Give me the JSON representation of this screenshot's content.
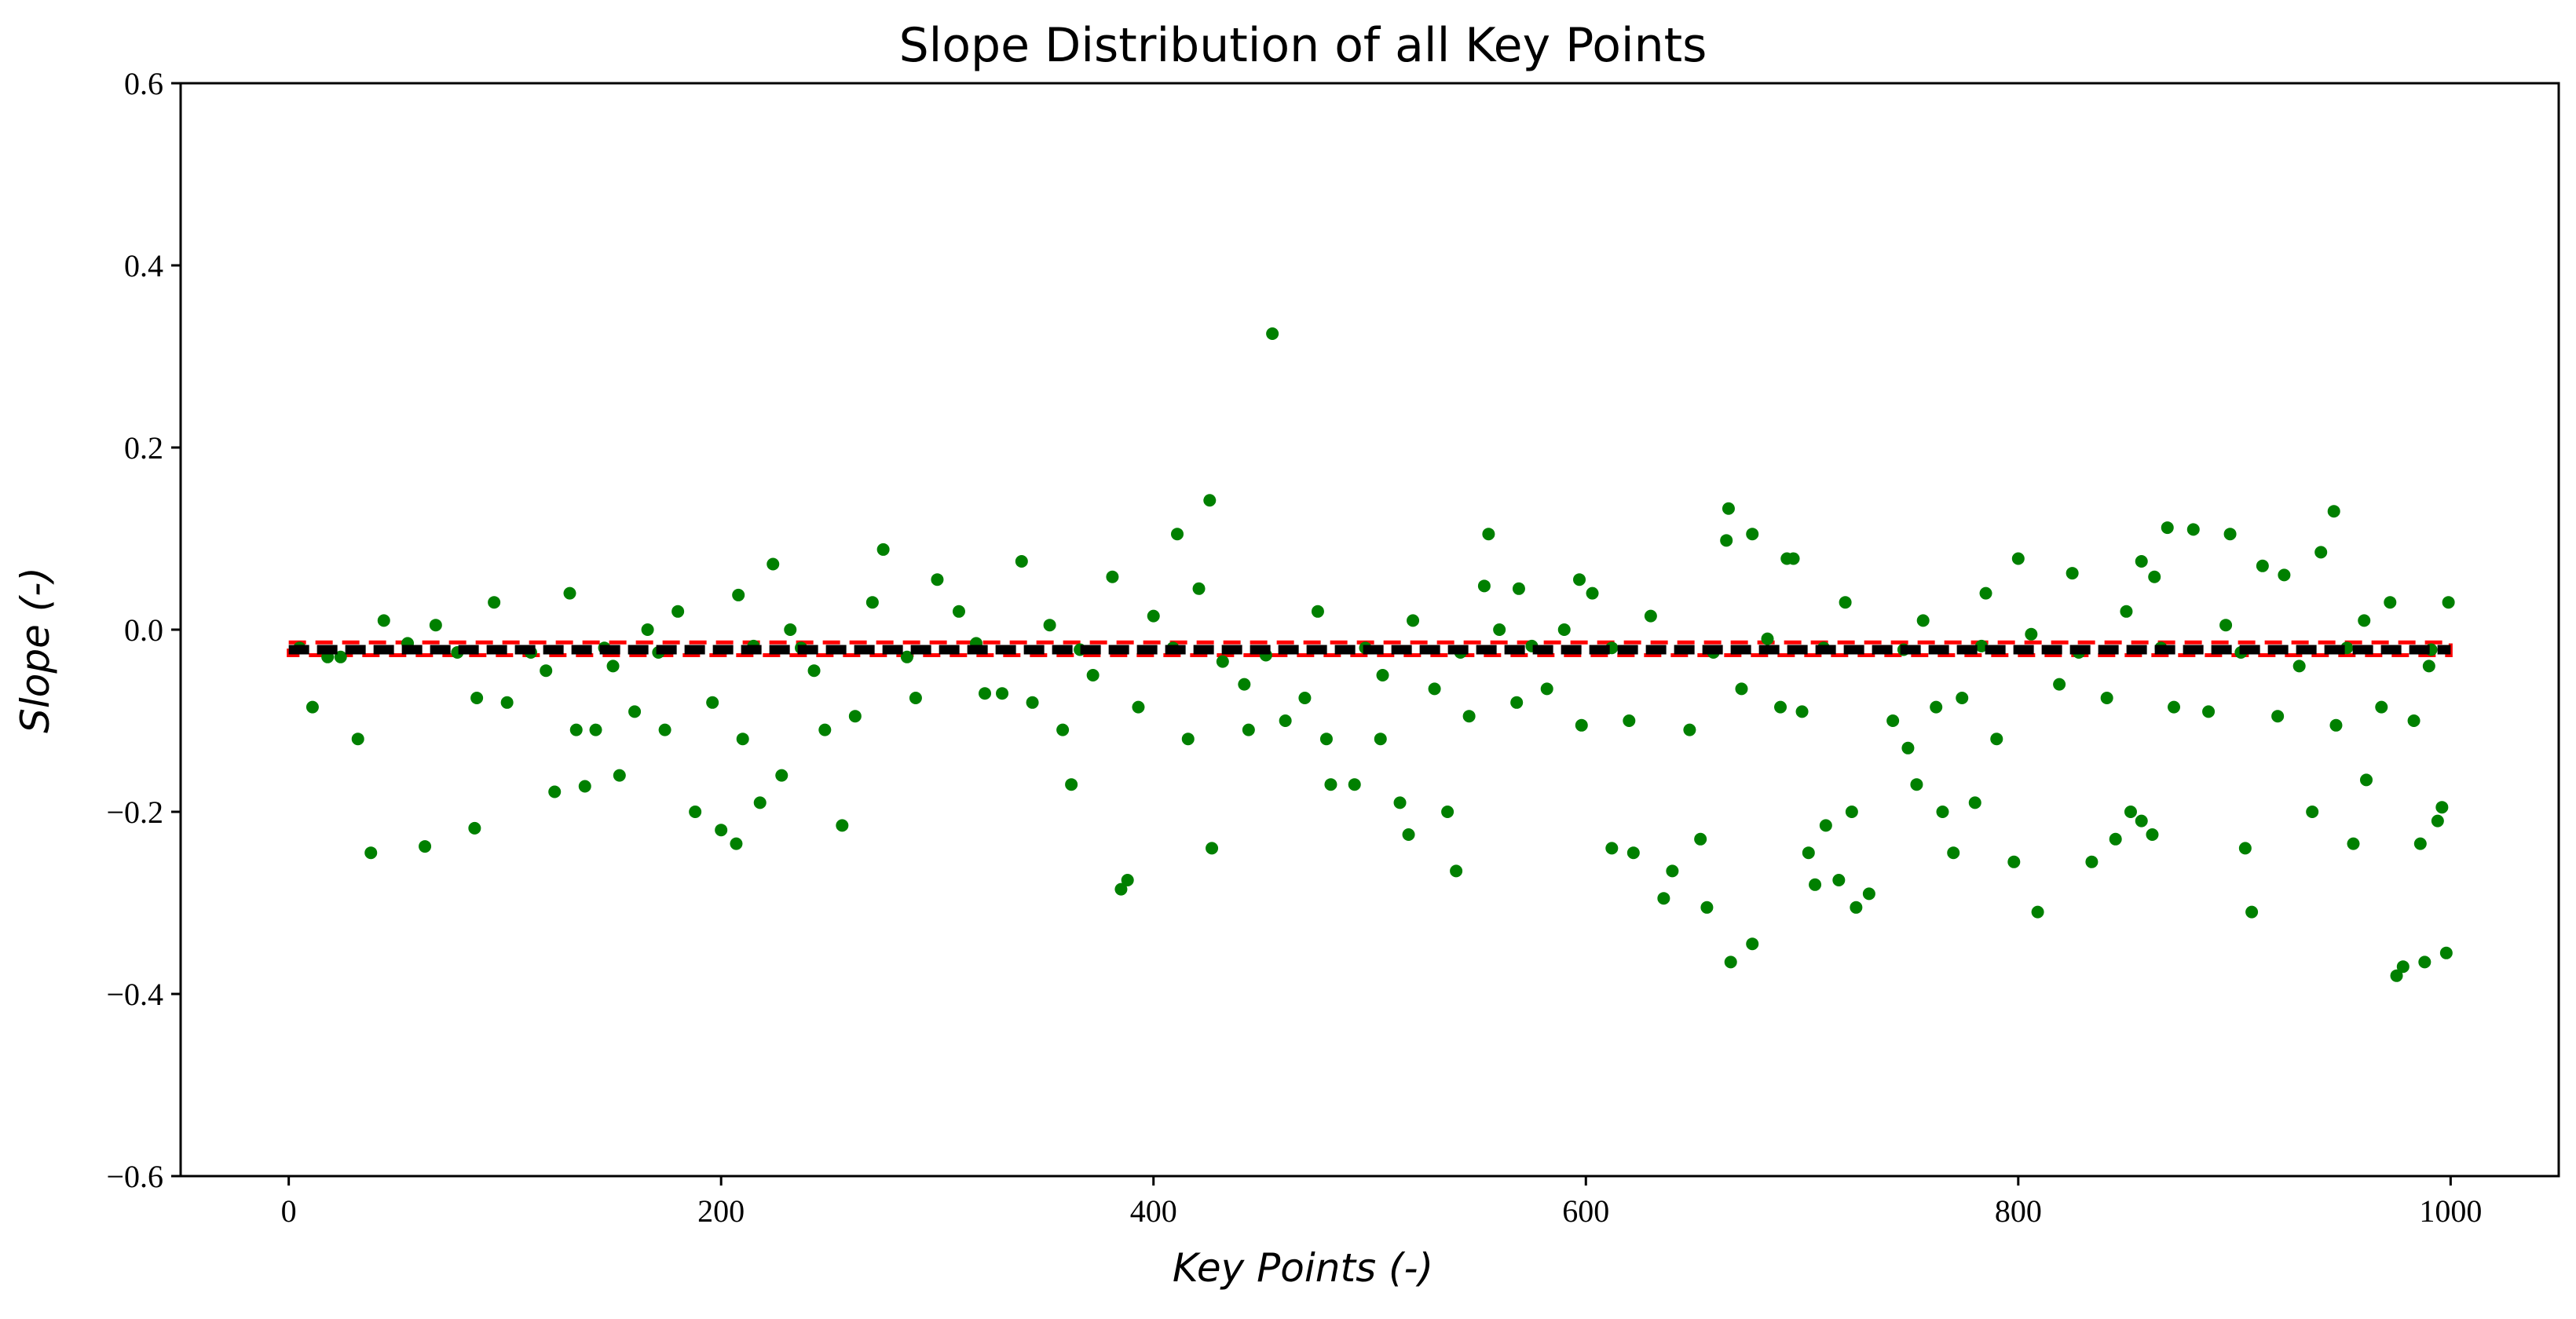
{
  "chart_data": {
    "type": "scatter",
    "title": "Slope Distribution of all Key Points",
    "xlabel": "Key Points (-)",
    "ylabel": "Slope (-)",
    "xlim": [
      -50,
      1050
    ],
    "ylim": [
      -0.6,
      0.6
    ],
    "xticks": [
      {
        "value": 0,
        "label": "0"
      },
      {
        "value": 200,
        "label": "200"
      },
      {
        "value": 400,
        "label": "400"
      },
      {
        "value": 600,
        "label": "600"
      },
      {
        "value": 800,
        "label": "800"
      },
      {
        "value": 1000,
        "label": "1000"
      }
    ],
    "yticks": [
      {
        "value": -0.6,
        "label": "−0.6"
      },
      {
        "value": -0.4,
        "label": "−0.4"
      },
      {
        "value": -0.2,
        "label": "−0.2"
      },
      {
        "value": 0.0,
        "label": "0.0"
      },
      {
        "value": 0.2,
        "label": "0.2"
      },
      {
        "value": 0.4,
        "label": "0.4"
      },
      {
        "value": 0.6,
        "label": "0.6"
      }
    ],
    "grid": false,
    "colors": {
      "points": "#008000",
      "baseline": "#000000",
      "band": "#ff0000"
    },
    "baseline": {
      "x": [
        0,
        1000
      ],
      "y": -0.022,
      "style": "dashed"
    },
    "band": {
      "x": [
        0,
        1000
      ],
      "y": [
        -0.028,
        -0.014
      ],
      "style": "dashed"
    },
    "series": [
      {
        "color": "#008000",
        "x": [
          38,
          63,
          86,
          123,
          137,
          153,
          188,
          200,
          207,
          218,
          228,
          256,
          322,
          362,
          385,
          388,
          427,
          444,
          482,
          493,
          505,
          514,
          518,
          536,
          540,
          612,
          622,
          636,
          640,
          653,
          656,
          667,
          677,
          703,
          706,
          711,
          717,
          723,
          725,
          731,
          749,
          753,
          765,
          770,
          780,
          798,
          809,
          834,
          845,
          852,
          857,
          862,
          905,
          908,
          936,
          955,
          961,
          975,
          978,
          986,
          988,
          994,
          996,
          998,
          455,
          426,
          666,
          869,
          881,
          946,
          898,
          411,
          275,
          421,
          224,
          339,
          130,
          208,
          300,
          381,
          555,
          553,
          569,
          597,
          603,
          665,
          677,
          693,
          696,
          785,
          800,
          825,
          857,
          863,
          913,
          923,
          940,
          972,
          999,
          11,
          32,
          87,
          101,
          119,
          133,
          142,
          160,
          174,
          196,
          210,
          243,
          248,
          262,
          290,
          330,
          344,
          358,
          372,
          393,
          416,
          442,
          461,
          470,
          480,
          506,
          530,
          546,
          568,
          582,
          598,
          620,
          648,
          672,
          690,
          700,
          742,
          762,
          774,
          790,
          819,
          841,
          872,
          888,
          920,
          947,
          968,
          983,
          18,
          44,
          68,
          95,
          150,
          166,
          180,
          232,
          270,
          310,
          352,
          400,
          432,
          476,
          520,
          560,
          590,
          630,
          684,
          720,
          756,
          806,
          850,
          896,
          930,
          960,
          990,
          5,
          24,
          55,
          78,
          112,
          146,
          171,
          215,
          237,
          286,
          318,
          366,
          409,
          452,
          498,
          542,
          575,
          612,
          659,
          710,
          747,
          783,
          828,
          866,
          903,
          952,
          991
        ],
        "y": [
          -0.245,
          -0.238,
          -0.218,
          -0.178,
          -0.172,
          -0.16,
          -0.2,
          -0.22,
          -0.235,
          -0.19,
          -0.16,
          -0.215,
          -0.07,
          -0.17,
          -0.285,
          -0.275,
          -0.24,
          -0.11,
          -0.17,
          -0.17,
          -0.12,
          -0.19,
          -0.225,
          -0.2,
          -0.265,
          -0.24,
          -0.245,
          -0.295,
          -0.265,
          -0.23,
          -0.305,
          -0.365,
          -0.345,
          -0.245,
          -0.28,
          -0.215,
          -0.275,
          -0.2,
          -0.305,
          -0.29,
          -0.13,
          -0.17,
          -0.2,
          -0.245,
          -0.19,
          -0.255,
          -0.31,
          -0.255,
          -0.23,
          -0.2,
          -0.21,
          -0.225,
          -0.24,
          -0.31,
          -0.2,
          -0.235,
          -0.165,
          -0.38,
          -0.37,
          -0.235,
          -0.365,
          -0.21,
          -0.195,
          -0.355,
          0.325,
          0.142,
          0.133,
          0.112,
          0.11,
          0.13,
          0.105,
          0.105,
          0.088,
          0.045,
          0.072,
          0.075,
          0.04,
          0.038,
          0.055,
          0.058,
          0.105,
          0.048,
          0.045,
          0.055,
          0.04,
          0.098,
          0.105,
          0.078,
          0.078,
          0.04,
          0.078,
          0.062,
          0.075,
          0.058,
          0.07,
          0.06,
          0.085,
          0.03,
          0.03,
          -0.085,
          -0.12,
          -0.075,
          -0.08,
          -0.045,
          -0.11,
          -0.11,
          -0.09,
          -0.11,
          -0.08,
          -0.12,
          -0.045,
          -0.11,
          -0.095,
          -0.075,
          -0.07,
          -0.08,
          -0.11,
          -0.05,
          -0.085,
          -0.12,
          -0.06,
          -0.1,
          -0.075,
          -0.12,
          -0.05,
          -0.065,
          -0.095,
          -0.08,
          -0.065,
          -0.105,
          -0.1,
          -0.11,
          -0.065,
          -0.085,
          -0.09,
          -0.1,
          -0.085,
          -0.075,
          -0.12,
          -0.06,
          -0.075,
          -0.085,
          -0.09,
          -0.095,
          -0.105,
          -0.085,
          -0.1,
          -0.03,
          0.01,
          0.005,
          0.03,
          -0.04,
          0.0,
          0.02,
          0.0,
          0.03,
          0.02,
          0.005,
          0.015,
          -0.035,
          0.02,
          0.01,
          0.0,
          0.0,
          0.015,
          -0.01,
          0.03,
          0.01,
          -0.005,
          0.02,
          0.005,
          -0.04,
          0.01,
          -0.04,
          -0.02,
          -0.03,
          -0.015,
          -0.025,
          -0.025,
          -0.02,
          -0.025,
          -0.018,
          -0.02,
          -0.03,
          -0.015,
          -0.022,
          -0.02,
          -0.028,
          -0.02,
          -0.025,
          -0.018,
          -0.02,
          -0.025,
          -0.02,
          -0.022,
          -0.018,
          -0.025,
          -0.02,
          -0.025,
          -0.02,
          -0.022
        ]
      }
    ]
  }
}
